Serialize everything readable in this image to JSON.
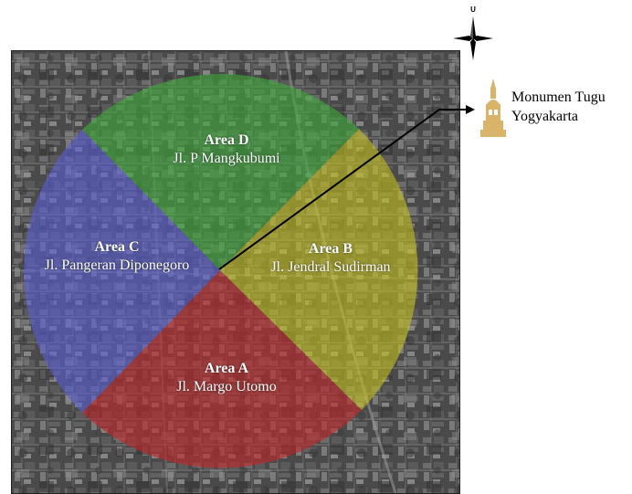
{
  "compass": {
    "north_letter": "U",
    "icon": "compass-rose-icon"
  },
  "landmark": {
    "name_line1": "Monumen Tugu",
    "name_line2": "Yogyakarta",
    "icon": "monument-icon",
    "color": "#d9b36a"
  },
  "areas": [
    {
      "id": "A",
      "name": "Area A",
      "street": "Jl. Margo Utomo",
      "color": "#c0282a"
    },
    {
      "id": "B",
      "name": "Area B",
      "street": "Jl. Jendral Sudirman",
      "color": "#c8c21c"
    },
    {
      "id": "C",
      "name": "Area C",
      "street": "Jl. Pangeran Diponegoro",
      "color": "#5a5fd6"
    },
    {
      "id": "D",
      "name": "Area D",
      "street": "Jl. P Mangkubumi",
      "color": "#3ea83a"
    }
  ],
  "map": {
    "type": "grayscale-satellite",
    "line_color": "#000000"
  }
}
